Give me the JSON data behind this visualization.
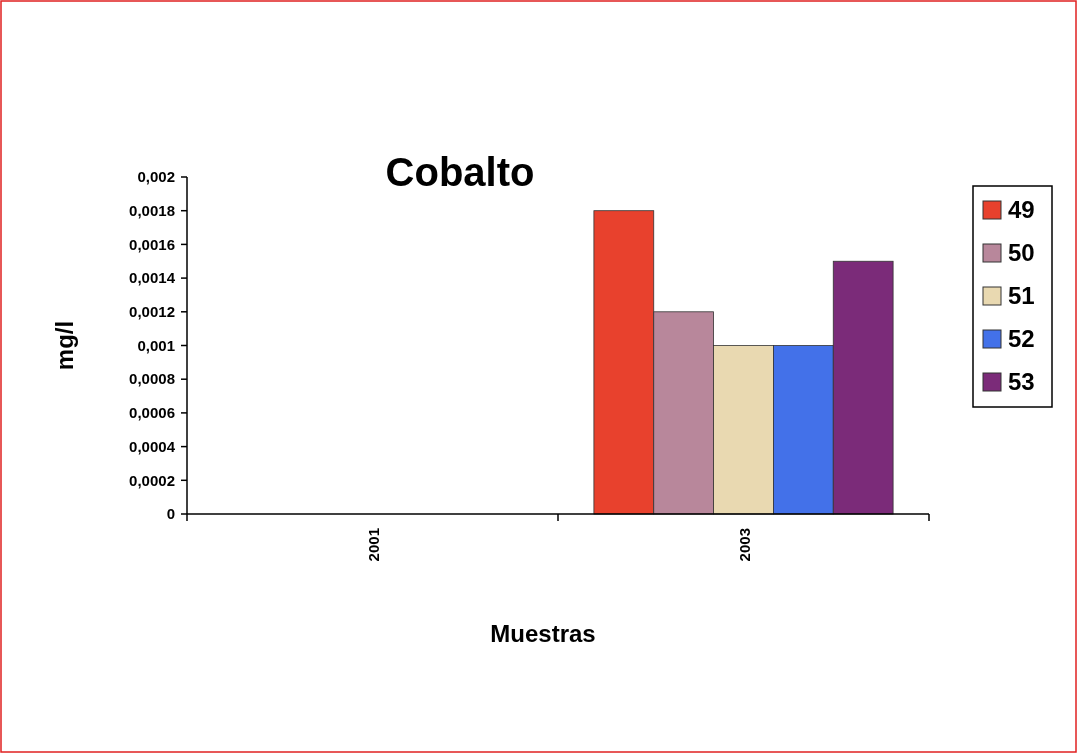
{
  "chart_data": {
    "type": "bar",
    "title": "Cobalto",
    "xlabel": "Muestras",
    "ylabel": "mg/l",
    "categories": [
      "2001",
      "2003"
    ],
    "series": [
      {
        "name": "49",
        "color": "#e8412d",
        "values": [
          null,
          0.0018
        ]
      },
      {
        "name": "50",
        "color": "#b8879b",
        "values": [
          null,
          0.0012
        ]
      },
      {
        "name": "51",
        "color": "#e9d9b1",
        "values": [
          null,
          0.001
        ]
      },
      {
        "name": "52",
        "color": "#4371e9",
        "values": [
          null,
          0.001
        ]
      },
      {
        "name": "53",
        "color": "#7b2b79",
        "values": [
          null,
          0.0015
        ]
      }
    ],
    "ylim": [
      0,
      0.002
    ],
    "yticks": [
      0,
      {
        "value": 0.0002,
        "label": "0,0002"
      },
      {
        "value": 0.0004,
        "label": "0,0004"
      },
      {
        "value": 0.0006,
        "label": "0,0006"
      },
      {
        "value": 0.0008,
        "label": "0,0008"
      },
      {
        "value": 0.001,
        "label": "0,001"
      },
      {
        "value": 0.0012,
        "label": "0,0012"
      },
      {
        "value": 0.0014,
        "label": "0,0014"
      },
      {
        "value": 0.0016,
        "label": "0,0016"
      },
      {
        "value": 0.0018,
        "label": "0,0018"
      },
      {
        "value": 0.002,
        "label": "0,002"
      }
    ],
    "legend": "right",
    "grid": false
  }
}
